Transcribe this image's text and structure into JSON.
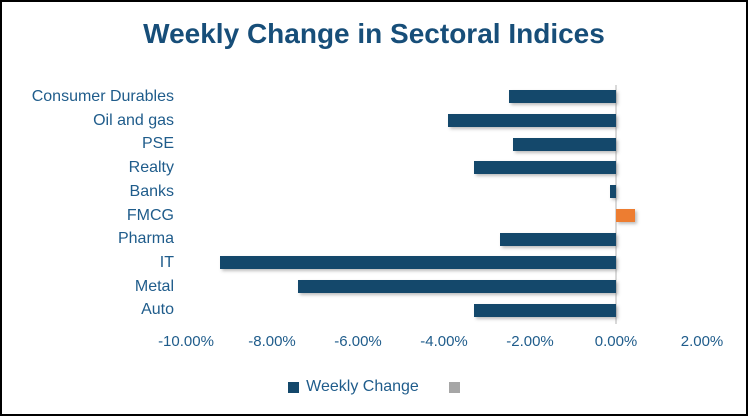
{
  "title": "Weekly Change in Sectoral Indices",
  "colors": {
    "title_text": "#174e79",
    "label_text": "#1f5c8b",
    "bar_negative": "#14486b",
    "bar_positive": "#ed7d31",
    "legend_gray_swatch": "#a6a6a6",
    "zero_axis_line": "#d9d9d9",
    "chart_border": "#000000"
  },
  "legend": [
    {
      "label": "Weekly Change",
      "color": "#14486b"
    },
    {
      "label": "",
      "color": "#a6a6a6"
    }
  ],
  "chart_data": {
    "type": "bar",
    "orientation": "horizontal",
    "title": "Weekly Change in Sectoral Indices",
    "categories": [
      "Consumer Durables",
      "Oil and gas",
      "PSE",
      "Realty",
      "Banks",
      "FMCG",
      "Pharma",
      "IT",
      "Metal",
      "Auto"
    ],
    "series": [
      {
        "name": "Weekly Change",
        "values": [
          -2.5,
          -3.9,
          -2.4,
          -3.3,
          -0.15,
          0.45,
          -2.7,
          -9.2,
          -7.4,
          -3.3
        ]
      }
    ],
    "value_unit": "percent",
    "xlim": [
      -10,
      2
    ],
    "x_tick_values": [
      -10,
      -8,
      -6,
      -4,
      -2,
      0,
      2
    ],
    "x_tick_labels": [
      "-10.00%",
      "-8.00%",
      "-6.00%",
      "-4.00%",
      "-2.00%",
      "0.00%",
      "2.00%"
    ],
    "xlabel": "",
    "ylabel": "",
    "gridlines": "zero-axis-only",
    "legend_position": "bottom",
    "positive_bar_color_rule": "positive values orange, negative values navy"
  }
}
